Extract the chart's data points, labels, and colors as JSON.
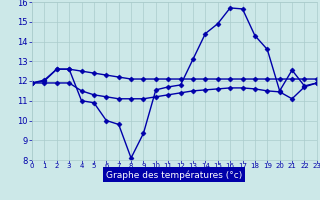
{
  "hours": [
    0,
    1,
    2,
    3,
    4,
    5,
    6,
    7,
    8,
    9,
    10,
    11,
    12,
    13,
    14,
    15,
    16,
    17,
    18,
    19,
    20,
    21,
    22,
    23
  ],
  "line_top": [
    11.9,
    12.0,
    12.6,
    12.6,
    12.5,
    12.4,
    12.3,
    12.2,
    12.1,
    12.1,
    12.1,
    12.1,
    12.1,
    12.1,
    12.1,
    12.1,
    12.1,
    12.1,
    12.1,
    12.1,
    12.1,
    12.1,
    12.1,
    12.1
  ],
  "line_bot": [
    11.9,
    11.9,
    11.9,
    11.9,
    11.5,
    11.3,
    11.2,
    11.1,
    11.1,
    11.1,
    11.2,
    11.3,
    11.4,
    11.5,
    11.55,
    11.6,
    11.65,
    11.65,
    11.6,
    11.5,
    11.45,
    11.1,
    11.7,
    11.9
  ],
  "line_mid": [
    11.9,
    12.05,
    12.6,
    12.6,
    11.0,
    10.9,
    10.0,
    9.8,
    8.1,
    9.35,
    11.55,
    11.7,
    11.8,
    13.1,
    14.4,
    14.9,
    15.7,
    15.65,
    14.3,
    13.6,
    11.5,
    12.55,
    11.75,
    11.9
  ],
  "background_color": "#cce8e8",
  "grid_color": "#aacccc",
  "line_color": "#0000aa",
  "xlabel": "Graphe des températures (°c)",
  "xlim": [
    0,
    23
  ],
  "ylim": [
    8,
    16
  ],
  "yticks": [
    8,
    9,
    10,
    11,
    12,
    13,
    14,
    15,
    16
  ],
  "xticks": [
    0,
    1,
    2,
    3,
    4,
    5,
    6,
    7,
    8,
    9,
    10,
    11,
    12,
    13,
    14,
    15,
    16,
    17,
    18,
    19,
    20,
    21,
    22,
    23
  ],
  "axis_label_color": "#0000aa",
  "tick_color": "#0000aa",
  "marker": "D",
  "markersize": 2.5,
  "linewidth": 1.0,
  "xlabel_bg": "#0000aa",
  "xlabel_text_color": "#ffffff"
}
